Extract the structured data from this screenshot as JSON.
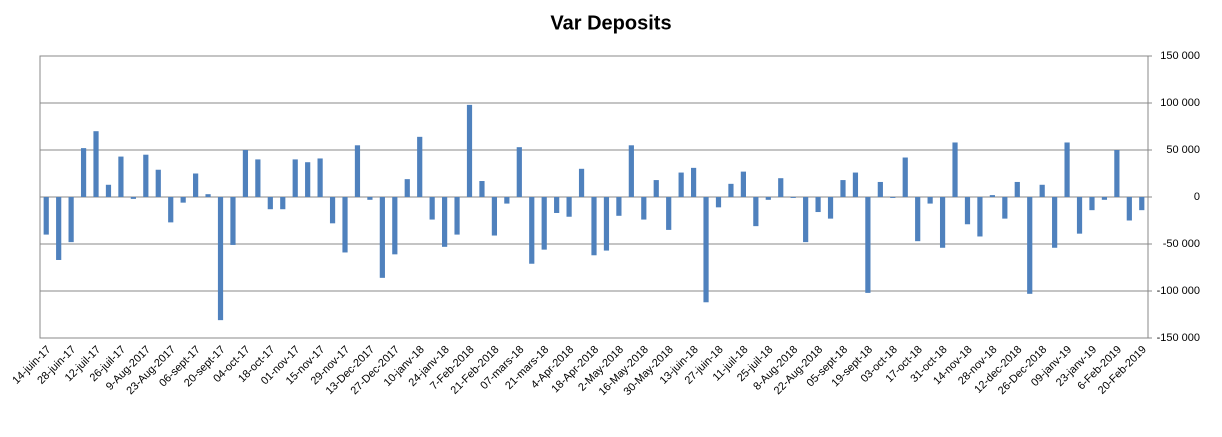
{
  "chart_data": {
    "type": "bar",
    "title": "Var Deposits",
    "categories": [
      "14-juin-17",
      null,
      "28-juin-17",
      null,
      "12-juil-17",
      null,
      "26-juil-17",
      null,
      "9-Aug-2017",
      null,
      "23-Aug-2017",
      null,
      "06-sept-17",
      null,
      "20-sept-17",
      null,
      "04-oct-17",
      null,
      "18-oct-17",
      null,
      "01-nov-17",
      null,
      "15-nov-17",
      null,
      "29-nov-17",
      null,
      "13-Dec-2017",
      null,
      "27-Dec-2017",
      null,
      "10-janv-18",
      null,
      "24-janv-18",
      null,
      "7-Feb-2018",
      null,
      "21-Feb-2018",
      null,
      "07-mars-18",
      null,
      "21-mars-18",
      null,
      "4-Apr-2018",
      null,
      "18-Apr-2018",
      null,
      "2-May-2018",
      null,
      "16-May-2018",
      null,
      "30-May-2018",
      null,
      "13-juin-18",
      null,
      "27-juin-18",
      null,
      "11-juil-18",
      null,
      "25-juil-18",
      null,
      "8-Aug-2018",
      null,
      "22-Aug-2018",
      null,
      "05-sept-18",
      null,
      "19-sept-18",
      null,
      "03-oct-18",
      null,
      "17-oct-18",
      null,
      "31-oct-18",
      null,
      "14-nov-18",
      null,
      "28-nov-18",
      null,
      "12-dec-2018",
      null,
      "26-Dec-2018",
      null,
      "09-janv-19",
      null,
      "23-janv-19",
      null,
      "6-Feb-2019",
      null,
      "20-Feb-2019"
    ],
    "values": [
      -40000,
      -67000,
      -48000,
      52000,
      70000,
      13000,
      43000,
      -2000,
      45000,
      29000,
      -27000,
      -6000,
      25000,
      3000,
      -131000,
      -51000,
      50000,
      40000,
      -13000,
      -13000,
      40000,
      37000,
      41000,
      -28000,
      -59000,
      55000,
      -3000,
      -86000,
      -61000,
      19000,
      64000,
      -24000,
      -53000,
      -40000,
      98000,
      17000,
      -41000,
      -7000,
      53000,
      -71000,
      -56000,
      -17000,
      -21000,
      30000,
      -62000,
      -57000,
      -20000,
      55000,
      -24000,
      18000,
      -35000,
      26000,
      31000,
      -112000,
      -11000,
      14000,
      27000,
      -31000,
      -3000,
      20000,
      -1000,
      -48000,
      -16000,
      -23000,
      18000,
      26000,
      -102000,
      16000,
      -1000,
      42000,
      -47000,
      -7000,
      -54000,
      58000,
      -29000,
      -42000,
      2000,
      -23000,
      16000,
      -103000,
      13000,
      -54000,
      58000,
      -39000,
      -14000,
      -3000,
      50000,
      -25000,
      -14000
    ],
    "color": "#4f81bd",
    "ylim": [
      -150000,
      150000
    ],
    "yticks": [
      {
        "value": -150000,
        "label": "-150 000"
      },
      {
        "value": -100000,
        "label": "-100 000"
      },
      {
        "value": -50000,
        "label": "-50 000"
      },
      0,
      {
        "value": 50000,
        "label": "50 000"
      },
      {
        "value": 100000,
        "label": "100 000"
      },
      {
        "value": 150000,
        "label": "150 000"
      }
    ],
    "grid": true
  }
}
